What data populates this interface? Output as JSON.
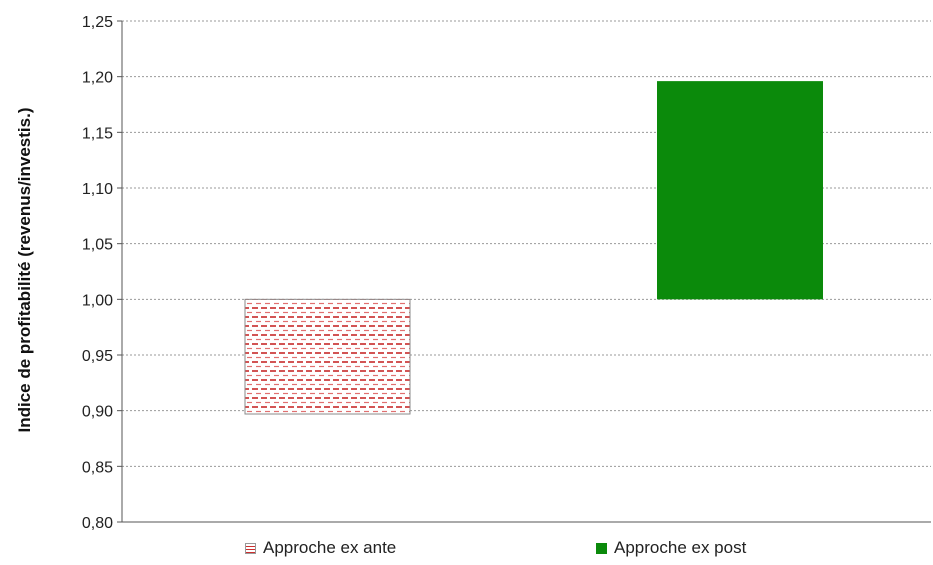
{
  "chart_data": {
    "type": "bar",
    "ylabel": "Indice de profitabilité (revenus/investis.)",
    "ylim": [
      0.8,
      1.25
    ],
    "yticks": [
      "0,80",
      "0,85",
      "0,90",
      "0,95",
      "1,00",
      "1,05",
      "1,10",
      "1,15",
      "1,20",
      "1,25"
    ],
    "grid": true,
    "baseline": 1.0,
    "series": [
      {
        "name": "Approche ex ante",
        "low": 0.897,
        "high": 1.0,
        "color": "#cc2f2f",
        "pattern": "dashed-horizontal"
      },
      {
        "name": "Approche ex post",
        "low": 1.0,
        "high": 1.196,
        "color": "#0b8a0b",
        "pattern": "solid"
      }
    ]
  }
}
